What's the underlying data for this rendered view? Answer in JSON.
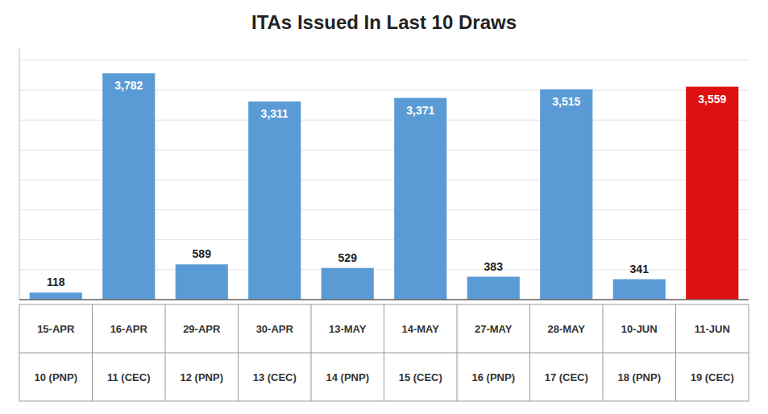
{
  "chart_data": {
    "type": "bar",
    "title": "ITAs Issued In Last 10 Draws",
    "categories": [
      [
        "15-APR",
        "10 (PNP)"
      ],
      [
        "16-APR",
        "11 (CEC)"
      ],
      [
        "29-APR",
        "12 (PNP)"
      ],
      [
        "30-APR",
        "13 (CEC)"
      ],
      [
        "13-MAY",
        "14 (PNP)"
      ],
      [
        "14-MAY",
        "15 (CEC)"
      ],
      [
        "27-MAY",
        "16 (PNP)"
      ],
      [
        "28-MAY",
        "17 (CEC)"
      ],
      [
        "10-JUN",
        "18 (PNP)"
      ],
      [
        "11-JUN",
        "19 (CEC)"
      ]
    ],
    "values": [
      118,
      3782,
      589,
      3311,
      529,
      3371,
      383,
      3515,
      341,
      3559
    ],
    "value_labels": [
      "118",
      "3,782",
      "589",
      "3,311",
      "529",
      "3,371",
      "383",
      "3,515",
      "341",
      "3,559"
    ],
    "colors": [
      "#5b9bd5",
      "#5b9bd5",
      "#5b9bd5",
      "#5b9bd5",
      "#5b9bd5",
      "#5b9bd5",
      "#5b9bd5",
      "#5b9bd5",
      "#5b9bd5",
      "#dd1111"
    ],
    "ylim": [
      0,
      4200
    ],
    "yticks": [
      0,
      500,
      1000,
      1500,
      2000,
      2500,
      3000,
      3500,
      4000
    ],
    "grid": true,
    "data_labels": true,
    "tick_labels": "x"
  }
}
